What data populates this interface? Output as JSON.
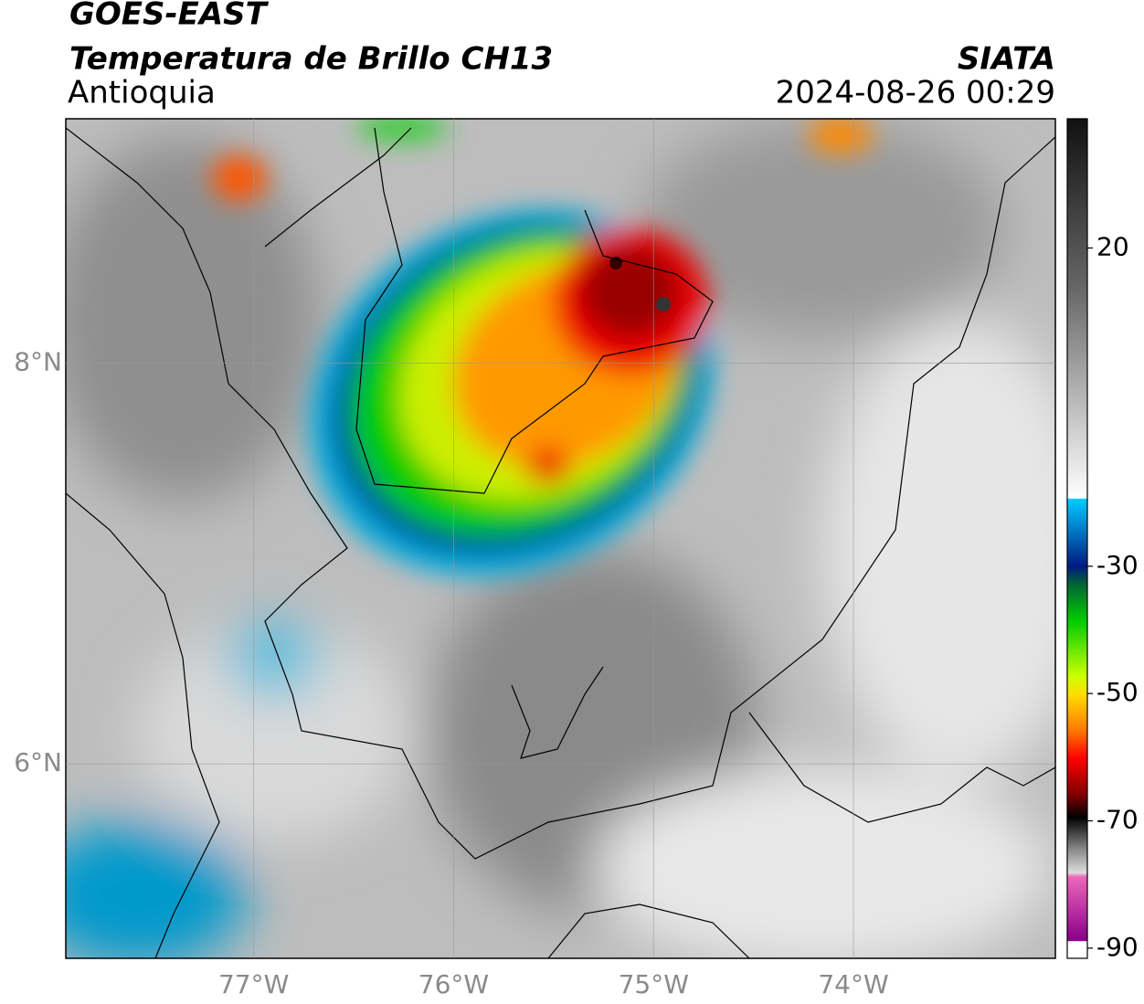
{
  "map_data": {
    "title": "GOES-EAST",
    "subtitle": "Temperatura de Brillo CH13",
    "region": "Antioquia",
    "source": "SIATA",
    "datetime": "2024-08-26 00:29",
    "xlim": [
      -77.94,
      -72.99
    ],
    "ylim": [
      5.03,
      9.22
    ],
    "xticks": [
      {
        "value": -77,
        "label": "77°W"
      },
      {
        "value": -76,
        "label": "76°W"
      },
      {
        "value": -75,
        "label": "75°W"
      },
      {
        "value": -74,
        "label": "74°W"
      }
    ],
    "yticks": [
      {
        "value": 8,
        "label": "8°N"
      },
      {
        "value": 6,
        "label": "6°N"
      }
    ],
    "grid": true,
    "colorbar": {
      "clim": [
        -91.6,
        40.3
      ],
      "ticks": [
        20,
        -30,
        -50,
        -70,
        -90
      ]
    }
  }
}
